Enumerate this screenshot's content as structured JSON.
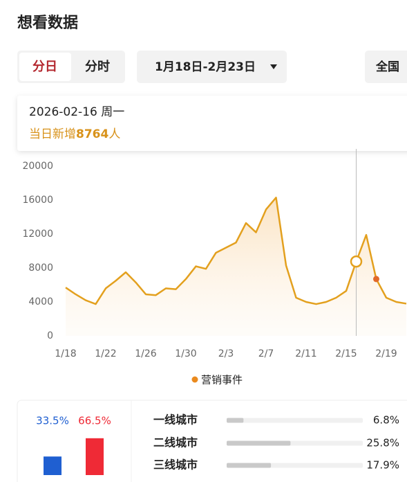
{
  "header": {
    "title": "想看数据"
  },
  "tabs": [
    "分日",
    "分时"
  ],
  "date_range": "1月18日-2月23日",
  "region": "全国",
  "tooltip": {
    "date": "2026-02-16 周一",
    "prefix": "当日新增",
    "suffix": "人"
  },
  "chart_data": [
    {
      "type": "line",
      "categories": [
        "1/18",
        null,
        null,
        null,
        "1/22",
        null,
        null,
        null,
        "1/26",
        null,
        null,
        null,
        "1/30",
        null,
        null,
        null,
        "2/3",
        null,
        null,
        null,
        "2/7",
        null,
        null,
        null,
        "2/11",
        null,
        null,
        null,
        "2/15",
        null,
        null,
        null,
        "2/19",
        null,
        null
      ],
      "series": [
        {
          "name": "营销事件",
          "color": "#e3a01e",
          "values": [
            5700,
            4900,
            4200,
            3750,
            5600,
            6500,
            7500,
            6300,
            4900,
            4800,
            5600,
            5500,
            6700,
            8200,
            7900,
            9800,
            10400,
            11000,
            13300,
            12200,
            14900,
            16300,
            8300,
            4500,
            4000,
            3750,
            4000,
            4500,
            5300,
            8764,
            11900,
            6700,
            4500,
            4000,
            3800
          ]
        }
      ],
      "ylim": [
        0,
        20000
      ],
      "yticks": [
        0,
        4000,
        8000,
        12000,
        16000,
        20000
      ],
      "grid": false,
      "selected_index": 29,
      "events": [
        {
          "index": 31,
          "color": "#e2692a"
        }
      ],
      "legend_color": "#ea8a1e"
    },
    {
      "type": "bar",
      "values": [
        33.5,
        66.5
      ],
      "value_labels": [
        "33.5%",
        "66.5%"
      ],
      "colors": [
        "#1f5fd1",
        "#ef2a36"
      ],
      "ylim": [
        0,
        70
      ]
    },
    {
      "type": "hbar",
      "categories": [
        "一线城市",
        "二线城市",
        "三线城市"
      ],
      "values": [
        6.8,
        25.8,
        17.9
      ],
      "value_labels": [
        "6.8%",
        "25.8%",
        "17.9%"
      ],
      "color": "#c9c9c9",
      "xlim": [
        0,
        55
      ]
    }
  ]
}
